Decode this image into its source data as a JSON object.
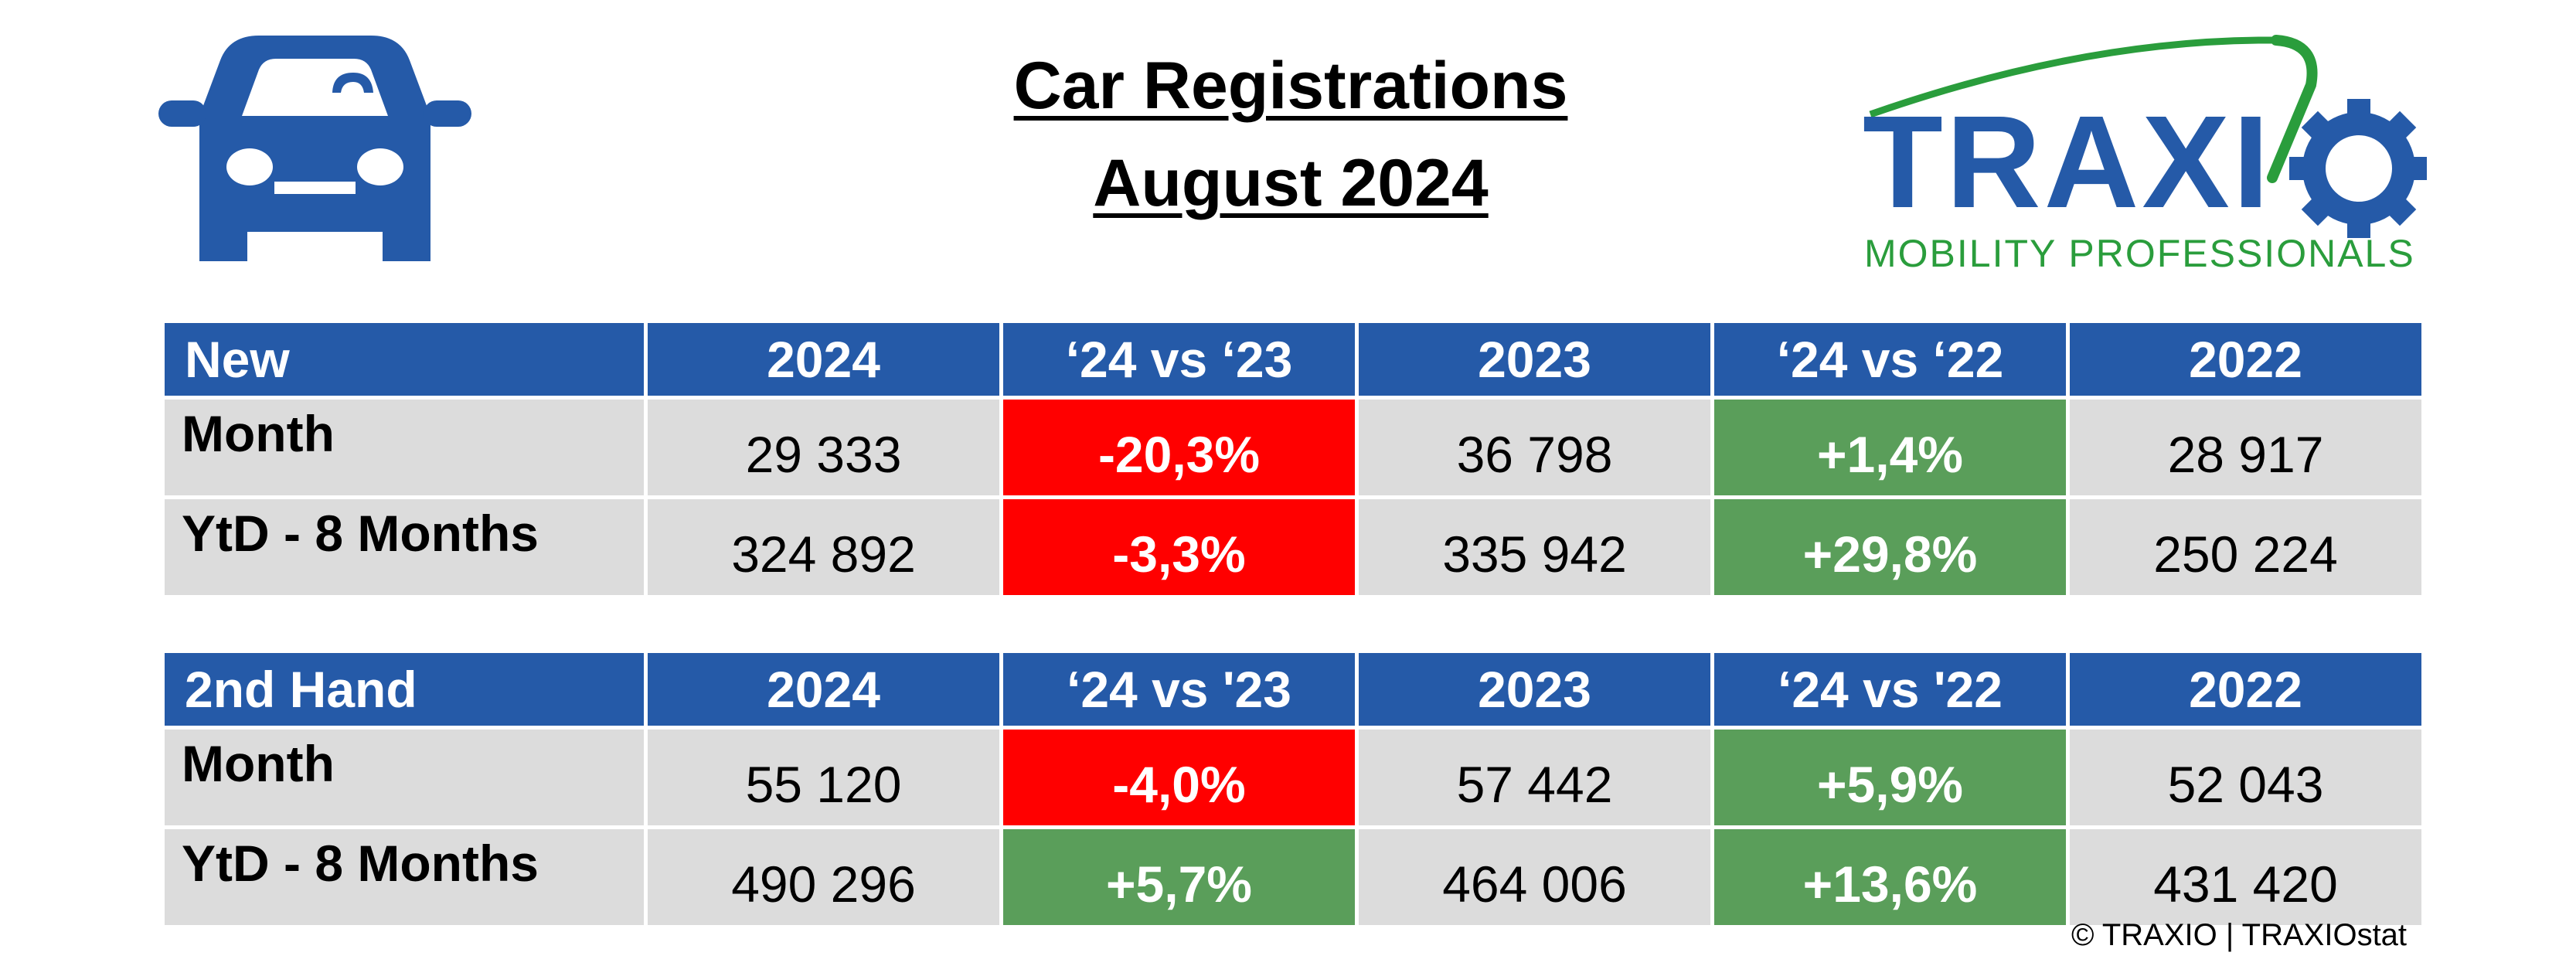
{
  "title": {
    "line1": "Car Registrations",
    "line2": "August 2024"
  },
  "logo": {
    "brand": "TRAXIO",
    "tagline": "MOBILITY PROFESSIONALS"
  },
  "colors": {
    "header_blue": "#255aa8",
    "negative_red": "#ff0000",
    "positive_green": "#5a9e5a",
    "cell_gray": "#dcdcdc",
    "logo_green": "#2a9d3c"
  },
  "new_table": {
    "header": [
      "New",
      "2024",
      "‘24 vs ‘23",
      "2023",
      "‘24 vs ‘22",
      "2022"
    ],
    "rows": [
      {
        "label": "Month",
        "v2024": "29 333",
        "d23": "-20,3%",
        "v2023": "36 798",
        "d22": "+1,4%",
        "v2022": "28 917"
      },
      {
        "label": "YtD - 8 Months",
        "v2024": "324 892",
        "d23": "-3,3%",
        "v2023": "335 942",
        "d22": "+29,8%",
        "v2022": "250 224"
      }
    ]
  },
  "used_table": {
    "header": [
      "2nd Hand",
      "2024",
      "‘24 vs '23",
      "2023",
      "‘24 vs '22",
      "2022"
    ],
    "rows": [
      {
        "label": "Month",
        "v2024": "55 120",
        "d23": "-4,0%",
        "v2023": "57 442",
        "d22": "+5,9%",
        "v2022": "52 043"
      },
      {
        "label": "YtD - 8 Months",
        "v2024": "490 296",
        "d23": "+5,7%",
        "v2023": "464 006",
        "d22": "+13,6%",
        "v2022": "431 420"
      }
    ]
  },
  "footer": "© TRAXIO | TRAXIOstat"
}
